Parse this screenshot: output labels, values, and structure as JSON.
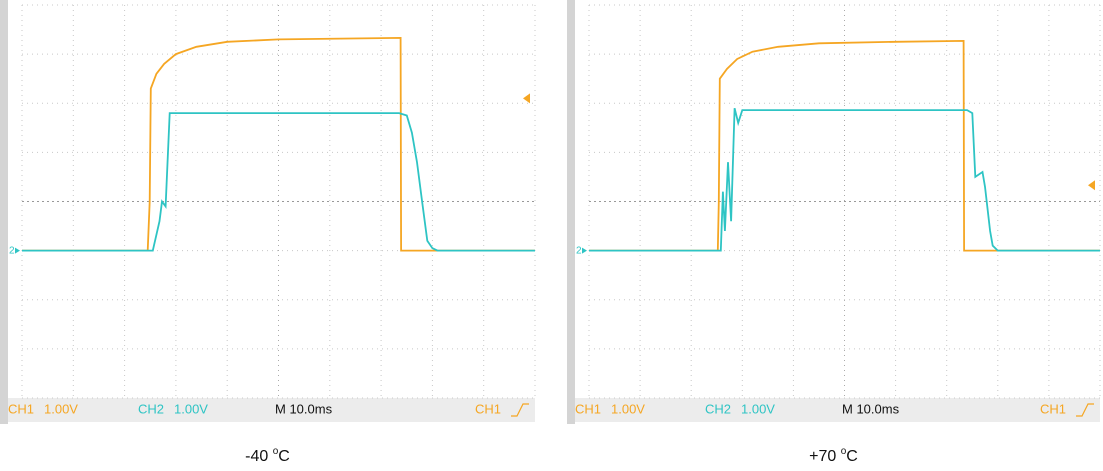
{
  "chart_data": [
    {
      "type": "line",
      "xlim": [
        0,
        100
      ],
      "ylim": [
        -3,
        5
      ],
      "trigger_level": 3.1,
      "ground_marker": "2",
      "timebase": "M 10.0ms",
      "trigger_source": "CH1",
      "caption": {
        "number": "-40 ",
        "sup": "o",
        "unit": "C"
      },
      "series": [
        {
          "name": "CH1",
          "color": "#f5a623",
          "scale": "1.00V",
          "x": [
            0,
            24.5,
            24.9,
            25.1,
            26.2,
            27.7,
            30,
            34,
            40,
            50,
            73.8,
            73.9,
            100
          ],
          "values": [
            0,
            0,
            1.0,
            3.3,
            3.6,
            3.8,
            4.0,
            4.15,
            4.25,
            4.3,
            4.33,
            0,
            0
          ]
        },
        {
          "name": "CH2",
          "color": "#2ec4c4",
          "scale": "1.00V",
          "x": [
            0,
            25.5,
            26.8,
            27.3,
            28,
            28.8,
            29.5,
            73.5,
            75,
            76,
            77,
            78,
            79,
            80,
            81,
            100
          ],
          "values": [
            0,
            0,
            0.6,
            1.0,
            0.9,
            2.8,
            2.8,
            2.8,
            2.75,
            2.4,
            1.8,
            1.0,
            0.2,
            0.05,
            0,
            0
          ]
        }
      ]
    },
    {
      "type": "line",
      "xlim": [
        0,
        100
      ],
      "ylim": [
        -3,
        5
      ],
      "trigger_level": 1.33,
      "ground_marker": "2",
      "timebase": "M 10.0ms",
      "trigger_source": "CH1",
      "caption": {
        "number": "+70 ",
        "sup": "o",
        "unit": "C"
      },
      "series": [
        {
          "name": "CH1",
          "color": "#f5a623",
          "scale": "1.00V",
          "x": [
            0,
            25.2,
            25.4,
            25.6,
            27,
            29,
            32,
            37,
            45,
            60,
            73.3,
            73.4,
            100
          ],
          "values": [
            0,
            0,
            1.0,
            3.5,
            3.7,
            3.9,
            4.05,
            4.15,
            4.22,
            4.25,
            4.27,
            0,
            0
          ]
        },
        {
          "name": "CH2",
          "color": "#2ec4c4",
          "scale": "1.00V",
          "x": [
            0,
            25.8,
            26.2,
            26.6,
            27.2,
            27.8,
            28.5,
            29.2,
            30,
            74,
            75,
            75.6,
            77,
            77.5,
            78.5,
            79,
            80,
            100
          ],
          "values": [
            0,
            0,
            1.2,
            0.4,
            1.8,
            0.6,
            2.9,
            2.6,
            2.86,
            2.86,
            2.8,
            1.5,
            1.6,
            1.3,
            0.4,
            0.1,
            0,
            0
          ]
        }
      ]
    }
  ]
}
